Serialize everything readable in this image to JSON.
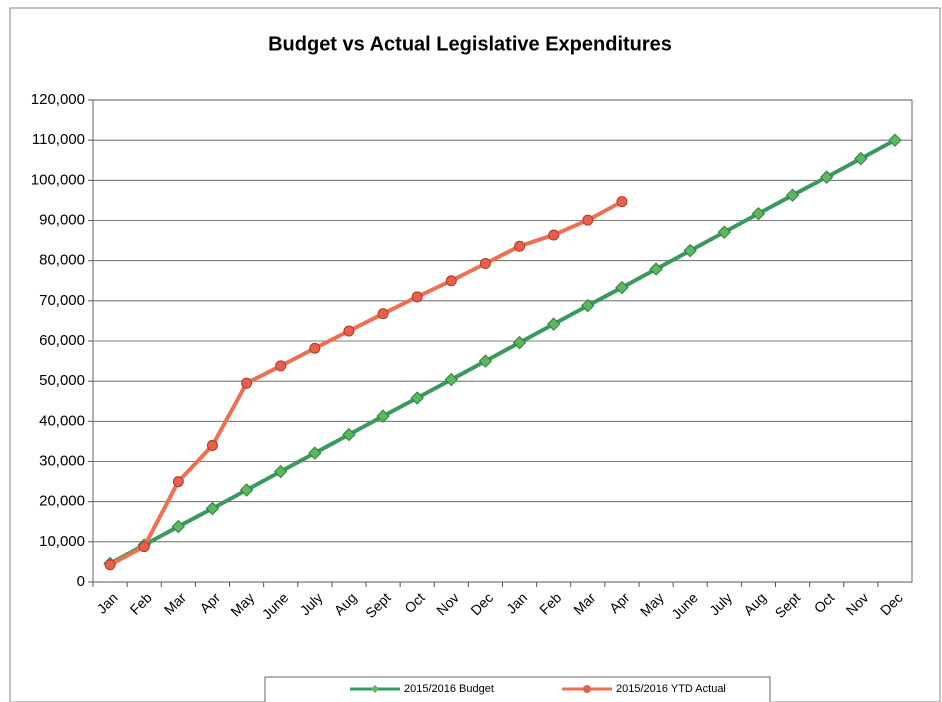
{
  "chart_data": {
    "type": "line",
    "title": "Budget vs Actual Legislative Expenditures",
    "categories": [
      "Jan",
      "Feb",
      "Mar",
      "Apr",
      "May",
      "June",
      "July",
      "Aug",
      "Sept",
      "Oct",
      "Nov",
      "Dec",
      "Jan",
      "Feb",
      "Mar",
      "Apr",
      "May",
      "June",
      "July",
      "Aug",
      "Sept",
      "Oct",
      "Nov",
      "Dec"
    ],
    "series": [
      {
        "name": "2015/2016 Budget",
        "color": "#3a9a5e",
        "marker": "diamond",
        "values": [
          4600,
          9200,
          13800,
          18300,
          22900,
          27500,
          32100,
          36700,
          41300,
          45800,
          50400,
          55000,
          59600,
          64200,
          68800,
          73300,
          77900,
          82500,
          87100,
          91700,
          96300,
          100800,
          105400,
          110000
        ]
      },
      {
        "name": "2015/2016 YTD Actual",
        "color": "#ef7050",
        "marker": "circle",
        "values": [
          4300,
          8800,
          25000,
          34000,
          49500,
          53800,
          58200,
          62500,
          66800,
          71000,
          75000,
          79300,
          83600,
          86400,
          90100,
          94700,
          null,
          null,
          null,
          null,
          null,
          null,
          null,
          null
        ]
      }
    ],
    "ylim": [
      0,
      120000
    ],
    "yticks": [
      0,
      {
        "value": 10000,
        "label": "10,000"
      },
      {
        "value": 20000,
        "label": "20,000"
      },
      {
        "value": 30000,
        "label": "30,000"
      },
      {
        "value": 40000,
        "label": "40,000"
      },
      {
        "value": 50000,
        "label": "50,000"
      },
      {
        "value": 60000,
        "label": "60,000"
      },
      {
        "value": 70000,
        "label": "70,000"
      },
      {
        "value": 80000,
        "label": "80,000"
      },
      {
        "value": 90000,
        "label": "90,000"
      },
      {
        "value": 100000,
        "label": "100,000"
      },
      {
        "value": 110000,
        "label": "110,000"
      },
      {
        "value": 120000,
        "label": "120,000"
      }
    ],
    "grid": true,
    "legend": "bottom"
  }
}
